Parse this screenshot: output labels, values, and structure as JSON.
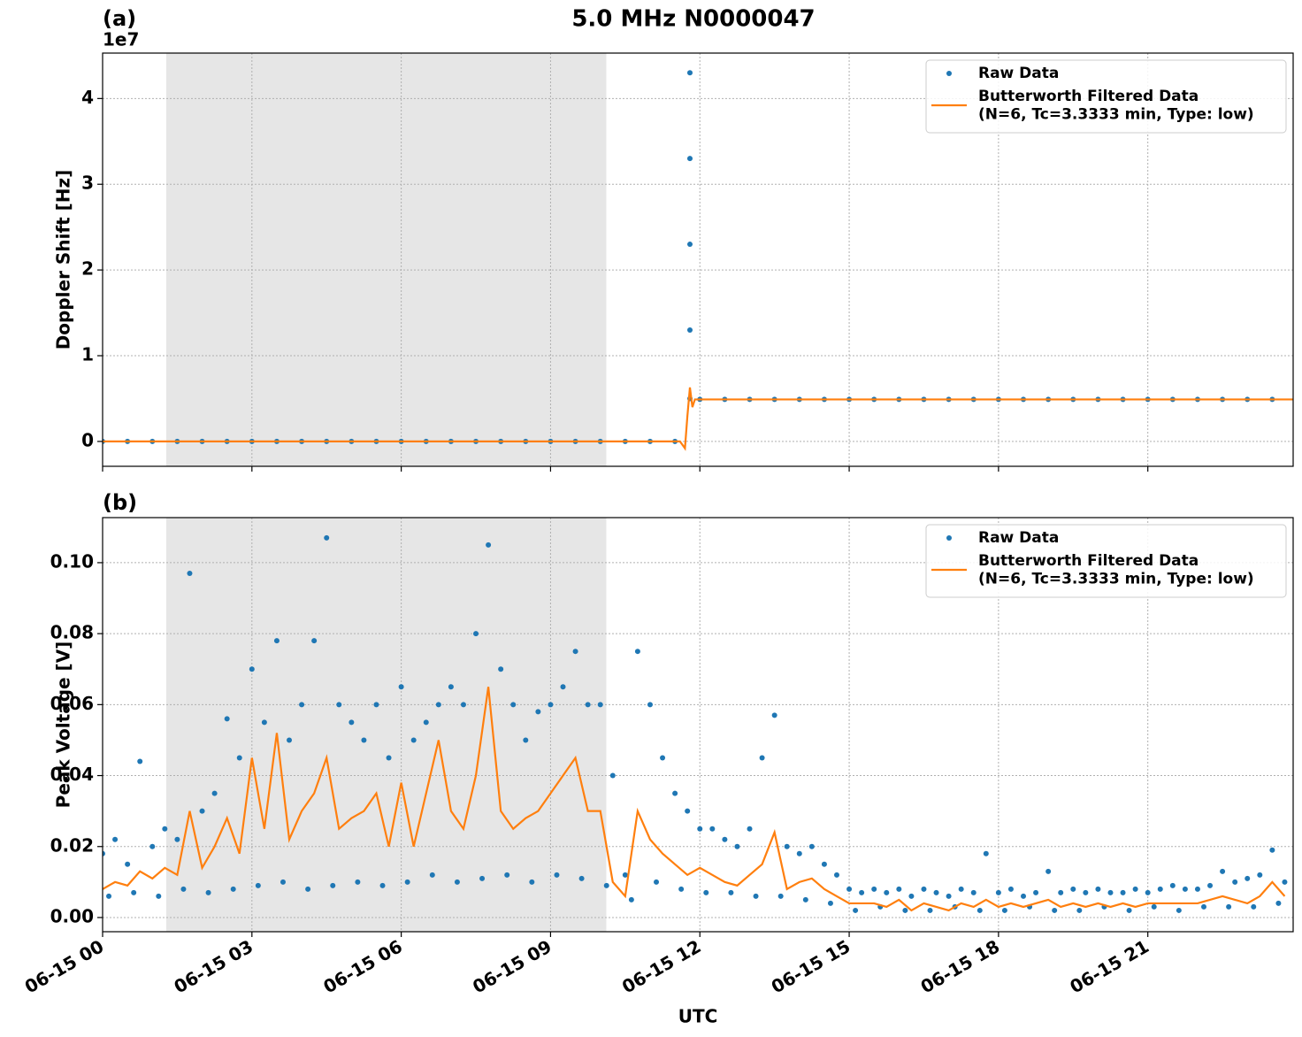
{
  "title": "5.0 MHz N0000047",
  "chart_data": [
    {
      "type": "line",
      "panel_label": "(a)",
      "offset_label": "1e7",
      "y_label": "Doppler Shift [Hz]",
      "xlim": [
        0,
        23.92
      ],
      "xticks": [
        0,
        3,
        6,
        9,
        12,
        15,
        18,
        21
      ],
      "ylim": [
        -0.29,
        4.53
      ],
      "yticks": [
        0,
        1,
        2,
        3,
        4
      ],
      "grid": true,
      "legend": "upper right",
      "shaded_span": [
        1.28,
        10.12
      ],
      "series": [
        {
          "name": "Raw Data",
          "color": "#1f77b4",
          "style": "markers",
          "x": [
            0,
            0.5,
            1,
            1.5,
            2,
            2.5,
            3,
            3.5,
            4,
            4.5,
            5,
            5.5,
            6,
            6.5,
            7,
            7.5,
            8,
            8.5,
            9,
            9.5,
            10,
            10.5,
            11,
            11.5,
            11.8,
            11.8,
            11.8,
            11.8,
            11.8,
            12,
            12.5,
            13,
            13.5,
            14,
            14.5,
            15,
            15.5,
            16,
            16.5,
            17,
            17.5,
            18,
            18.5,
            19,
            19.5,
            20,
            20.5,
            21,
            21.5,
            22,
            22.5,
            23,
            23.5
          ],
          "values": [
            0,
            0,
            0,
            0,
            0,
            0,
            0,
            0,
            0,
            0,
            0,
            0,
            0,
            0,
            0,
            0,
            0,
            0,
            0,
            0,
            0,
            0,
            0,
            0,
            4.3,
            3.3,
            2.3,
            1.3,
            0.5,
            0.49,
            0.49,
            0.49,
            0.49,
            0.49,
            0.49,
            0.49,
            0.49,
            0.49,
            0.49,
            0.49,
            0.49,
            0.49,
            0.49,
            0.49,
            0.49,
            0.49,
            0.49,
            0.49,
            0.49,
            0.49,
            0.49,
            0.49,
            0.49
          ]
        },
        {
          "name": "Butterworth Filtered Data\n(N=6, Tc=3.3333 min, Type: low)",
          "color": "#ff7f0e",
          "style": "line",
          "x": [
            0,
            11.6,
            11.7,
            11.75,
            11.8,
            11.85,
            11.9,
            12,
            23.92
          ],
          "values": [
            0,
            0,
            -0.08,
            0.3,
            0.63,
            0.4,
            0.49,
            0.49,
            0.49
          ]
        }
      ]
    },
    {
      "type": "line",
      "panel_label": "(b)",
      "y_label": "Peak Voltage [V]",
      "x_label": "UTC",
      "xlim": [
        0,
        23.92
      ],
      "xticks": [
        {
          "value": 0,
          "label": "06-15 00"
        },
        {
          "value": 3,
          "label": "06-15 03"
        },
        {
          "value": 6,
          "label": "06-15 06"
        },
        {
          "value": 9,
          "label": "06-15 09"
        },
        {
          "value": 12,
          "label": "06-15 12"
        },
        {
          "value": 15,
          "label": "06-15 15"
        },
        {
          "value": 18,
          "label": "06-15 18"
        },
        {
          "value": 21,
          "label": "06-15 21"
        }
      ],
      "ylim": [
        -0.004,
        0.1127
      ],
      "yticks": [
        {
          "value": 0,
          "label": "0.00"
        },
        0.02,
        0.04,
        0.06,
        0.08,
        {
          "value": 0.1,
          "label": "0.10"
        }
      ],
      "grid": true,
      "legend": "upper right",
      "shaded_span": [
        1.28,
        10.12
      ],
      "series": [
        {
          "name": "Raw Data",
          "color": "#1f77b4",
          "style": "markers",
          "x": [
            0,
            0.25,
            0.5,
            0.75,
            1,
            1.25,
            1.5,
            1.75,
            2,
            2.25,
            2.5,
            2.75,
            3,
            3.25,
            3.5,
            3.75,
            4,
            4.25,
            4.5,
            4.75,
            5,
            5.25,
            5.5,
            5.75,
            6,
            6.25,
            6.5,
            6.75,
            7,
            7.25,
            7.5,
            7.75,
            8,
            8.25,
            8.5,
            8.75,
            9,
            9.25,
            9.5,
            9.75,
            10,
            10.25,
            10.5,
            10.75,
            11,
            11.25,
            11.5,
            11.75,
            12,
            12.25,
            12.5,
            12.75,
            13,
            13.25,
            13.5,
            13.75,
            14,
            14.25,
            14.5,
            14.75,
            15,
            15.25,
            15.5,
            15.75,
            16,
            16.25,
            16.5,
            16.75,
            17,
            17.25,
            17.5,
            17.75,
            18,
            18.25,
            18.5,
            18.75,
            19,
            19.25,
            19.5,
            19.75,
            20,
            20.25,
            20.5,
            20.75,
            21,
            21.25,
            21.5,
            21.75,
            22,
            22.25,
            22.5,
            22.75,
            23,
            23.25,
            23.5,
            23.75,
            0.125,
            0.625,
            1.125,
            1.625,
            2.125,
            2.625,
            3.125,
            3.625,
            4.125,
            4.625,
            5.125,
            5.625,
            6.125,
            6.625,
            7.125,
            7.625,
            8.125,
            8.625,
            9.125,
            9.625,
            10.125,
            10.625,
            11.125,
            11.625,
            12.125,
            12.625,
            13.125,
            13.625,
            14.125,
            14.625,
            15.125,
            15.625,
            16.125,
            16.625,
            17.125,
            17.625,
            18.125,
            18.625,
            19.125,
            19.625,
            20.125,
            20.625,
            21.125,
            21.625,
            22.125,
            22.625,
            23.125,
            23.625
          ],
          "values": [
            0.018,
            0.022,
            0.015,
            0.044,
            0.02,
            0.025,
            0.022,
            0.097,
            0.03,
            0.035,
            0.056,
            0.045,
            0.07,
            0.055,
            0.078,
            0.05,
            0.06,
            0.078,
            0.107,
            0.06,
            0.055,
            0.05,
            0.06,
            0.045,
            0.065,
            0.05,
            0.055,
            0.06,
            0.065,
            0.06,
            0.08,
            0.105,
            0.07,
            0.06,
            0.05,
            0.058,
            0.06,
            0.065,
            0.075,
            0.06,
            0.06,
            0.04,
            0.012,
            0.075,
            0.06,
            0.045,
            0.035,
            0.03,
            0.025,
            0.025,
            0.022,
            0.02,
            0.025,
            0.045,
            0.057,
            0.02,
            0.018,
            0.02,
            0.015,
            0.012,
            0.008,
            0.007,
            0.008,
            0.007,
            0.008,
            0.006,
            0.008,
            0.007,
            0.006,
            0.008,
            0.007,
            0.018,
            0.007,
            0.008,
            0.006,
            0.007,
            0.013,
            0.007,
            0.008,
            0.007,
            0.008,
            0.007,
            0.007,
            0.008,
            0.007,
            0.008,
            0.009,
            0.008,
            0.008,
            0.009,
            0.013,
            0.01,
            0.011,
            0.012,
            0.019,
            0.01,
            0.006,
            0.007,
            0.006,
            0.008,
            0.007,
            0.008,
            0.009,
            0.01,
            0.008,
            0.009,
            0.01,
            0.009,
            0.01,
            0.012,
            0.01,
            0.011,
            0.012,
            0.01,
            0.012,
            0.011,
            0.009,
            0.005,
            0.01,
            0.008,
            0.007,
            0.007,
            0.006,
            0.006,
            0.005,
            0.004,
            0.002,
            0.003,
            0.002,
            0.002,
            0.003,
            0.002,
            0.002,
            0.003,
            0.002,
            0.002,
            0.003,
            0.002,
            0.003,
            0.002,
            0.003,
            0.003,
            0.003,
            0.004
          ]
        },
        {
          "name": "Butterworth Filtered Data\n(N=6, Tc=3.3333 min, Type: low)",
          "color": "#ff7f0e",
          "style": "line",
          "x": [
            0,
            0.25,
            0.5,
            0.75,
            1,
            1.25,
            1.5,
            1.75,
            2,
            2.25,
            2.5,
            2.75,
            3,
            3.25,
            3.5,
            3.75,
            4,
            4.25,
            4.5,
            4.75,
            5,
            5.25,
            5.5,
            5.75,
            6,
            6.25,
            6.5,
            6.75,
            7,
            7.25,
            7.5,
            7.75,
            8,
            8.25,
            8.5,
            8.75,
            9,
            9.25,
            9.5,
            9.75,
            10,
            10.25,
            10.5,
            10.75,
            11,
            11.25,
            11.5,
            11.75,
            12,
            12.25,
            12.5,
            12.75,
            13,
            13.25,
            13.5,
            13.75,
            14,
            14.25,
            14.5,
            14.75,
            15,
            15.25,
            15.5,
            15.75,
            16,
            16.25,
            16.5,
            16.75,
            17,
            17.25,
            17.5,
            17.75,
            18,
            18.25,
            18.5,
            18.75,
            19,
            19.25,
            19.5,
            19.75,
            20,
            20.25,
            20.5,
            20.75,
            21,
            21.25,
            21.5,
            21.75,
            22,
            22.25,
            22.5,
            22.75,
            23,
            23.25,
            23.5,
            23.75
          ],
          "values": [
            0.008,
            0.01,
            0.009,
            0.013,
            0.011,
            0.014,
            0.012,
            0.03,
            0.014,
            0.02,
            0.028,
            0.018,
            0.045,
            0.025,
            0.052,
            0.022,
            0.03,
            0.035,
            0.045,
            0.025,
            0.028,
            0.03,
            0.035,
            0.02,
            0.038,
            0.02,
            0.035,
            0.05,
            0.03,
            0.025,
            0.04,
            0.065,
            0.03,
            0.025,
            0.028,
            0.03,
            0.035,
            0.04,
            0.045,
            0.03,
            0.03,
            0.01,
            0.006,
            0.03,
            0.022,
            0.018,
            0.015,
            0.012,
            0.014,
            0.012,
            0.01,
            0.009,
            0.012,
            0.015,
            0.024,
            0.008,
            0.01,
            0.011,
            0.008,
            0.006,
            0.004,
            0.004,
            0.004,
            0.003,
            0.005,
            0.002,
            0.004,
            0.003,
            0.002,
            0.004,
            0.003,
            0.005,
            0.003,
            0.004,
            0.003,
            0.004,
            0.005,
            0.003,
            0.004,
            0.003,
            0.004,
            0.003,
            0.004,
            0.003,
            0.004,
            0.004,
            0.004,
            0.004,
            0.004,
            0.005,
            0.006,
            0.005,
            0.004,
            0.006,
            0.01,
            0.006
          ]
        }
      ]
    }
  ]
}
